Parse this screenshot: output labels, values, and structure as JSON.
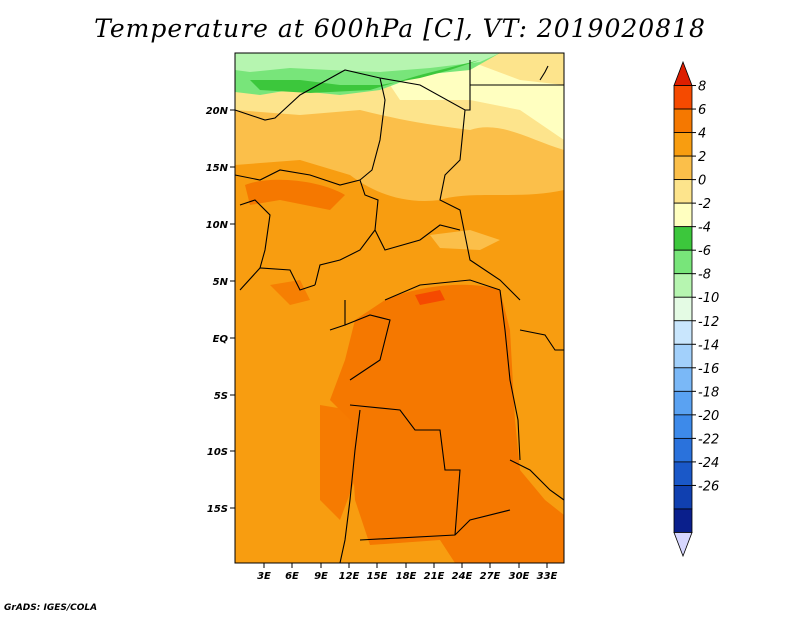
{
  "title": "Temperature at 600hPa [C], VT: 2019020818",
  "credit": "GrADS: IGES/COLA",
  "map": {
    "lat_labels": [
      "20N",
      "15N",
      "10N",
      "5N",
      "EQ",
      "5S",
      "10S",
      "15S"
    ],
    "lon_labels": [
      "3E",
      "6E",
      "9E",
      "12E",
      "15E",
      "18E",
      "21E",
      "24E",
      "27E",
      "30E",
      "33E"
    ]
  },
  "colorbar": {
    "labels": [
      "8",
      "6",
      "4",
      "2",
      "0",
      "-2",
      "-4",
      "-6",
      "-8",
      "-10",
      "-12",
      "-14",
      "-16",
      "-18",
      "-20",
      "-22",
      "-24",
      "-26"
    ],
    "colors": [
      "#d7d7ff",
      "#0a1f8c",
      "#1040b0",
      "#1a58c8",
      "#2a72dc",
      "#3d8aea",
      "#5aa2f2",
      "#7ab8f7",
      "#a2d0fb",
      "#c9e6fd",
      "#e4fbe4",
      "#b6f5b0",
      "#78e57a",
      "#3cc73c",
      "#ffffc0",
      "#fde48c",
      "#fbbf4a",
      "#f89d10",
      "#f57800",
      "#f54a00",
      "#dd1e00"
    ]
  }
}
